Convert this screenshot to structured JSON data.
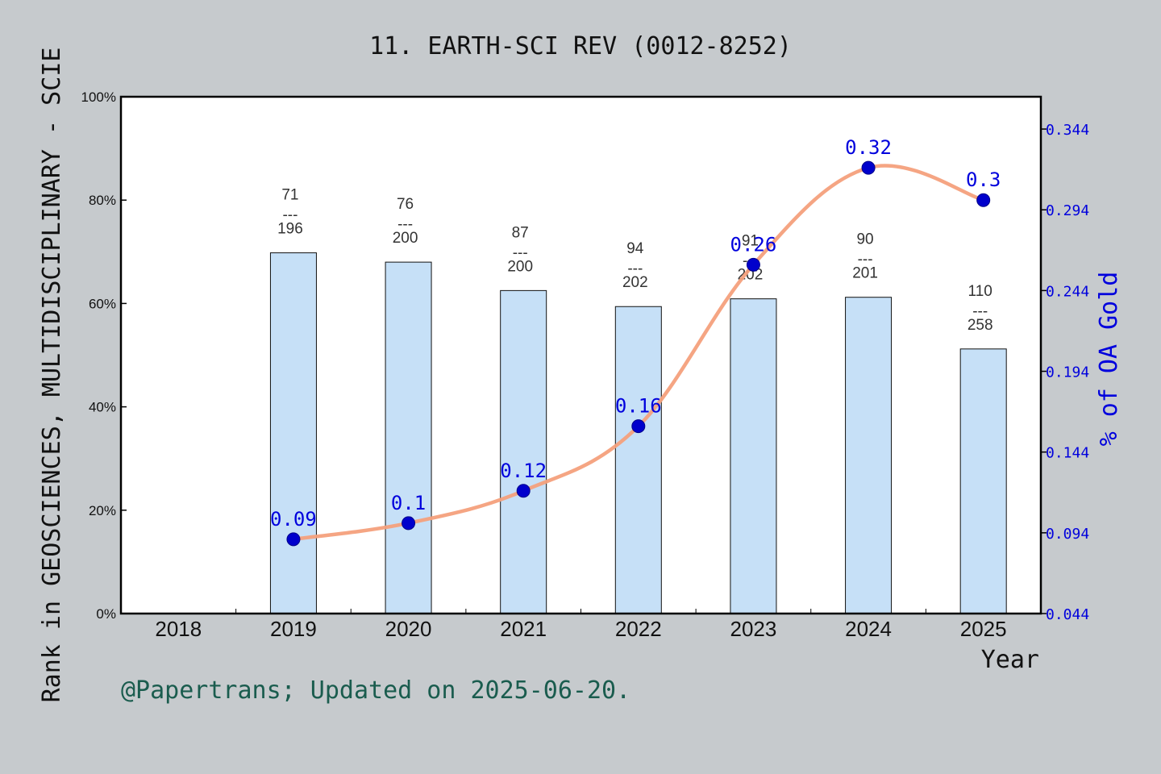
{
  "chart_data": {
    "type": "bar",
    "title": "11. EARTH-SCI REV (0012-8252)",
    "xlabel": "Year",
    "ylabel": "Rank in GEOSCIENCES, MULTIDISCIPLINARY - SCIE",
    "y2label": "% of OA Gold",
    "footer": "@Papertrans; Updated on 2025-06-20.",
    "categories": [
      "2018",
      "2019",
      "2020",
      "2021",
      "2022",
      "2023",
      "2024",
      "2025"
    ],
    "ylim": [
      0,
      100
    ],
    "y_ticks": [
      "0%",
      "20%",
      "40%",
      "60%",
      "80%",
      "100%"
    ],
    "y2lim": [
      0.044,
      0.364
    ],
    "y2_ticks": [
      "0.044",
      "0.094",
      "0.144",
      "0.194",
      "0.244",
      "0.294",
      "0.344"
    ],
    "bars": [
      {
        "year": "2019",
        "rank": 71,
        "total": 196,
        "percent": 69.8,
        "label_top": "71",
        "label_sep": "---",
        "label_bottom": "196"
      },
      {
        "year": "2020",
        "rank": 76,
        "total": 200,
        "percent": 68.0,
        "label_top": "76",
        "label_sep": "---",
        "label_bottom": "200"
      },
      {
        "year": "2021",
        "rank": 87,
        "total": 200,
        "percent": 62.5,
        "label_top": "87",
        "label_sep": "---",
        "label_bottom": "200"
      },
      {
        "year": "2022",
        "rank": 94,
        "total": 202,
        "percent": 59.4,
        "label_top": "94",
        "label_sep": "---",
        "label_bottom": "202"
      },
      {
        "year": "2023",
        "rank": 91,
        "total": 202,
        "percent": 60.9,
        "label_top": "91",
        "label_sep": "---",
        "label_bottom": "202"
      },
      {
        "year": "2024",
        "rank": 90,
        "total": 201,
        "percent": 61.2,
        "label_top": "90",
        "label_sep": "---",
        "label_bottom": "201"
      },
      {
        "year": "2025",
        "rank": 110,
        "total": 258,
        "percent": 51.2,
        "label_top": "110",
        "label_sep": "---",
        "label_bottom": "258"
      }
    ],
    "line": [
      {
        "year": "2019",
        "value": 0.09,
        "label": "0.09"
      },
      {
        "year": "2020",
        "value": 0.1,
        "label": "0.1"
      },
      {
        "year": "2021",
        "value": 0.12,
        "label": "0.12"
      },
      {
        "year": "2022",
        "value": 0.16,
        "label": "0.16"
      },
      {
        "year": "2023",
        "value": 0.26,
        "label": "0.26"
      },
      {
        "year": "2024",
        "value": 0.32,
        "label": "0.32"
      },
      {
        "year": "2025",
        "value": 0.3,
        "label": "0.3"
      }
    ],
    "colors": {
      "background": "#c6cacd",
      "plot_bg": "#ffffff",
      "bar_fill": "#c6e0f7",
      "bar_stroke": "#111111",
      "line": "#f4a07c",
      "marker": "#0000cc",
      "right_axis": "#0000dd",
      "footer": "#1a5c4e"
    }
  }
}
